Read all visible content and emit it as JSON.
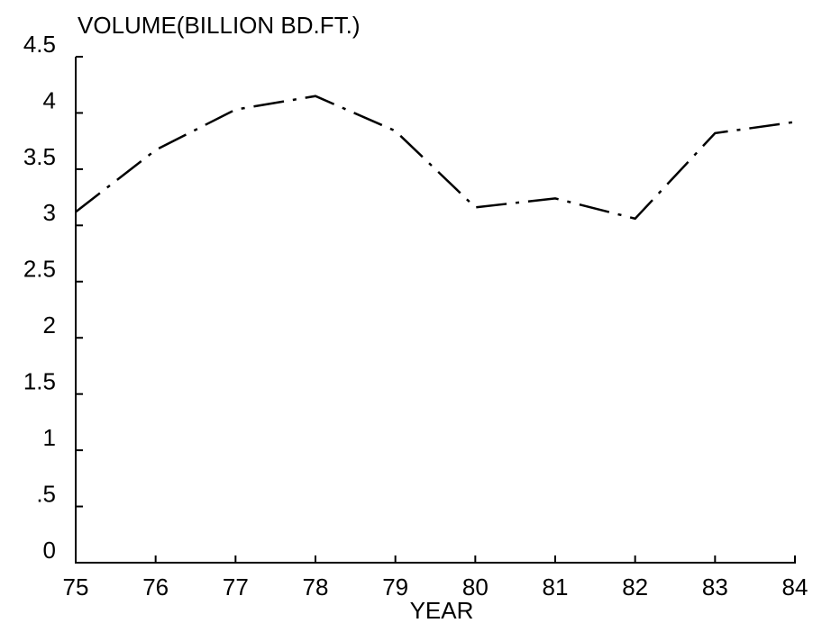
{
  "chart_data": {
    "type": "line",
    "y_label": "VOLUME(BILLION BD.FT.)",
    "x_label": "YEAR",
    "x": [
      75,
      76,
      77,
      78,
      79,
      80,
      81,
      82,
      83,
      84
    ],
    "series": [
      {
        "color": "#000000",
        "values": [
          3.12,
          3.67,
          4.03,
          4.15,
          3.84,
          3.16,
          3.24,
          3.06,
          3.82,
          3.92
        ]
      }
    ],
    "xlim": [
      75,
      84
    ],
    "xticks": [
      75,
      76,
      77,
      78,
      79,
      80,
      81,
      82,
      83,
      84
    ],
    "ylim": [
      0,
      4.5
    ],
    "yticks": [
      0,
      {
        "value": 0.5,
        "label": ".5"
      },
      1,
      1.5,
      2,
      2.5,
      3,
      3.5,
      4,
      4.5
    ],
    "line_style": "dashdot"
  }
}
